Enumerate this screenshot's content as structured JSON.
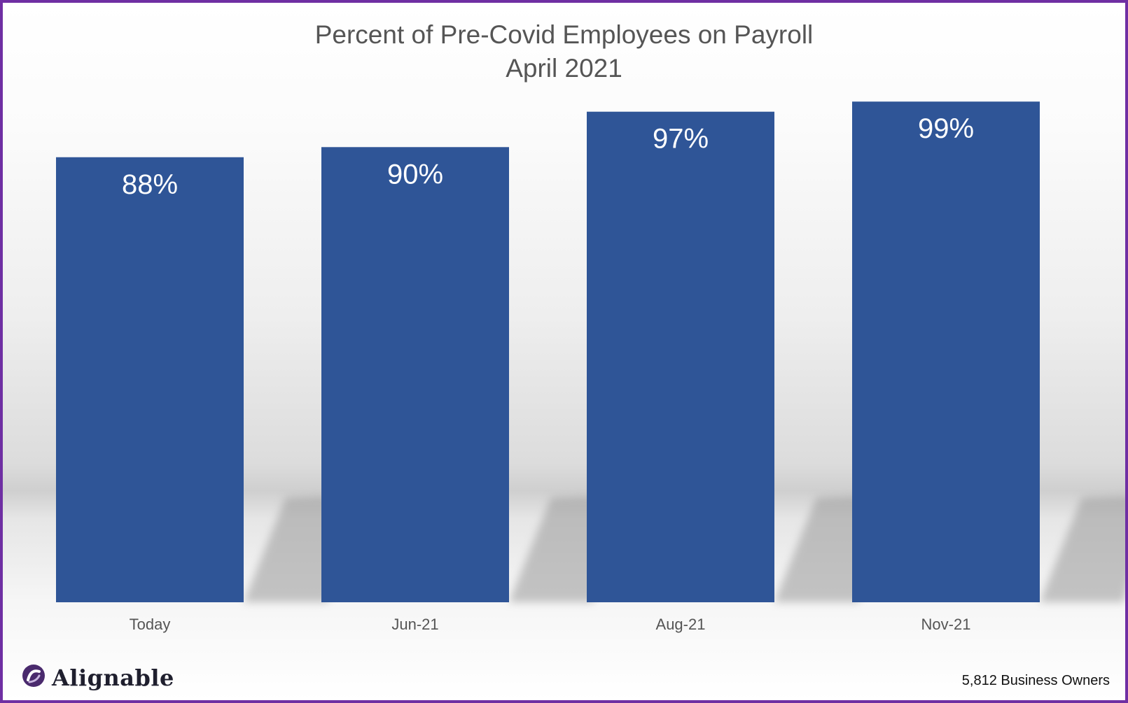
{
  "title": "Percent of Pre-Covid Employees on Payroll",
  "subtitle": "April 2021",
  "colors": {
    "bar": "#2f5597",
    "border": "#6f2fa3",
    "shadow": "#9a9a9a"
  },
  "chart_data": {
    "type": "bar",
    "title": "Percent of Pre-Covid Employees on Payroll",
    "subtitle": "April 2021",
    "categories": [
      "Today",
      "Jun-21",
      "Aug-21",
      "Nov-21"
    ],
    "values": [
      88,
      90,
      97,
      99
    ],
    "value_labels": [
      "88%",
      "90%",
      "97%",
      "99%"
    ],
    "unit": "%",
    "xlabel": "",
    "ylabel": "",
    "ylim": [
      0,
      100
    ],
    "grid": false,
    "legend": "none"
  },
  "logo": {
    "name": "alignable-logo-icon",
    "text": "Alignable"
  },
  "footnote": "5,812 Business Owners"
}
